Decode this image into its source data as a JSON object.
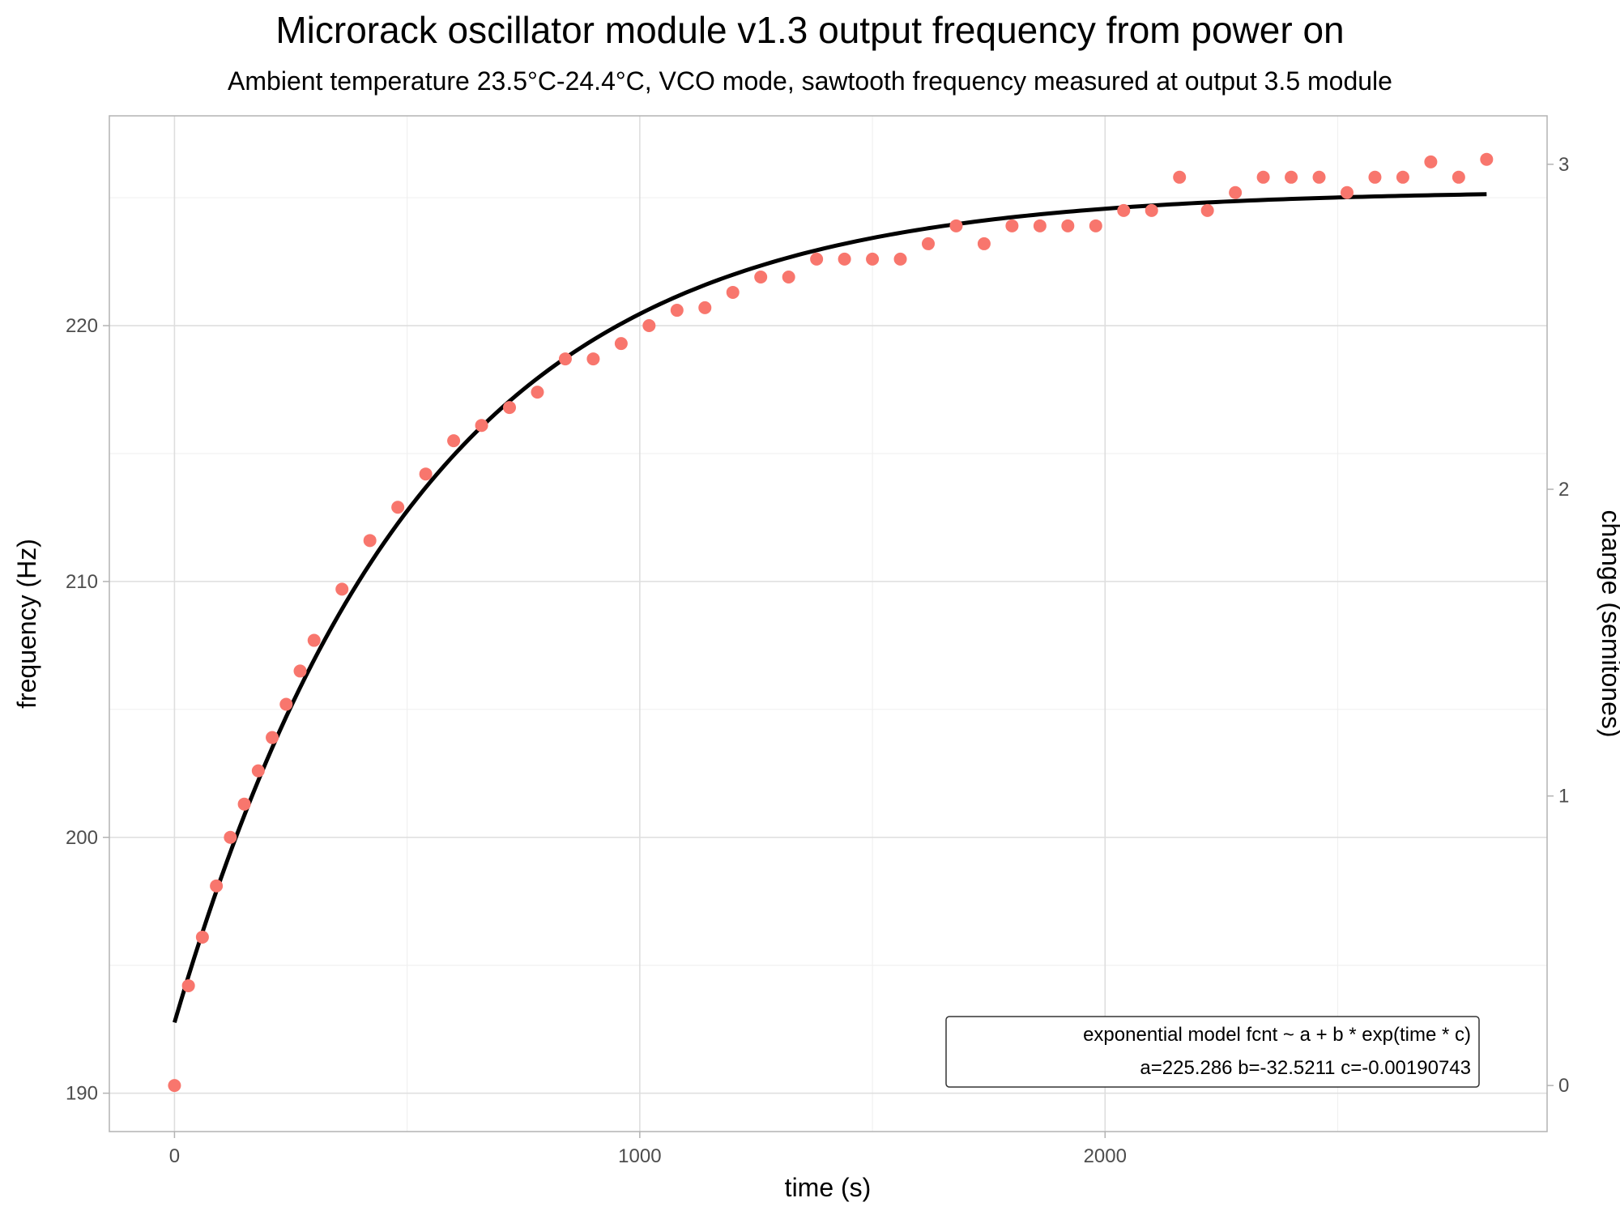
{
  "chart_data": {
    "type": "scatter",
    "title": "Microrack oscillator module v1.3 output frequency from power on",
    "subtitle": "Ambient temperature 23.5°C-24.4°C, VCO mode, sawtooth frequency measured at output 3.5 module",
    "xlabel": "time (s)",
    "ylabel": "frequency (Hz)",
    "y2label": "change (semitones)",
    "xlim": [
      -140,
      2950
    ],
    "ylim": [
      188.5,
      228.2
    ],
    "x_ticks": [
      0,
      1000,
      2000
    ],
    "x_tick_labels": [
      "0",
      "1000",
      "2000"
    ],
    "y_ticks": [
      190,
      200,
      210,
      220
    ],
    "y_tick_labels": [
      "190",
      "200",
      "210",
      "220"
    ],
    "y2_ticks": [
      0,
      1,
      2,
      3
    ],
    "y2_tick_labels": [
      "0",
      "1",
      "2",
      "3"
    ],
    "y2_reference_hz": 190.3,
    "grid": true,
    "points": {
      "color": "#f8766d",
      "x": [
        0,
        30,
        60,
        90,
        120,
        150,
        180,
        210,
        240,
        270,
        300,
        360,
        420,
        480,
        540,
        600,
        660,
        720,
        780,
        840,
        900,
        960,
        1020,
        1080,
        1140,
        1200,
        1260,
        1320,
        1380,
        1440,
        1500,
        1560,
        1620,
        1680,
        1740,
        1800,
        1860,
        1920,
        1980,
        2040,
        2100,
        2160,
        2220,
        2280,
        2340,
        2400,
        2460,
        2520,
        2580,
        2640,
        2700,
        2760,
        2820
      ],
      "y": [
        190.3,
        194.2,
        196.1,
        198.1,
        200.0,
        201.3,
        202.6,
        203.9,
        205.2,
        206.5,
        207.7,
        209.7,
        211.6,
        212.9,
        214.2,
        215.5,
        216.1,
        216.8,
        217.4,
        218.7,
        218.7,
        219.3,
        220.0,
        220.6,
        220.7,
        221.3,
        221.9,
        221.9,
        222.6,
        222.6,
        222.6,
        222.6,
        223.2,
        223.9,
        223.2,
        223.9,
        223.9,
        223.9,
        223.9,
        224.5,
        224.5,
        225.8,
        224.5,
        225.2,
        225.8,
        225.8,
        225.8,
        225.2,
        225.8,
        225.8,
        226.4,
        225.8,
        226.5
      ]
    },
    "fit": {
      "color": "#000000",
      "label": "exponential model fcnt ~ a + b * exp(time * c)",
      "params_text": "a=225.286  b=-32.5211  c=-0.00190743",
      "a": 225.286,
      "b": -32.5211,
      "c": -0.00190743,
      "x_range": [
        0,
        2820
      ]
    },
    "legend_position": "bottom-right"
  }
}
